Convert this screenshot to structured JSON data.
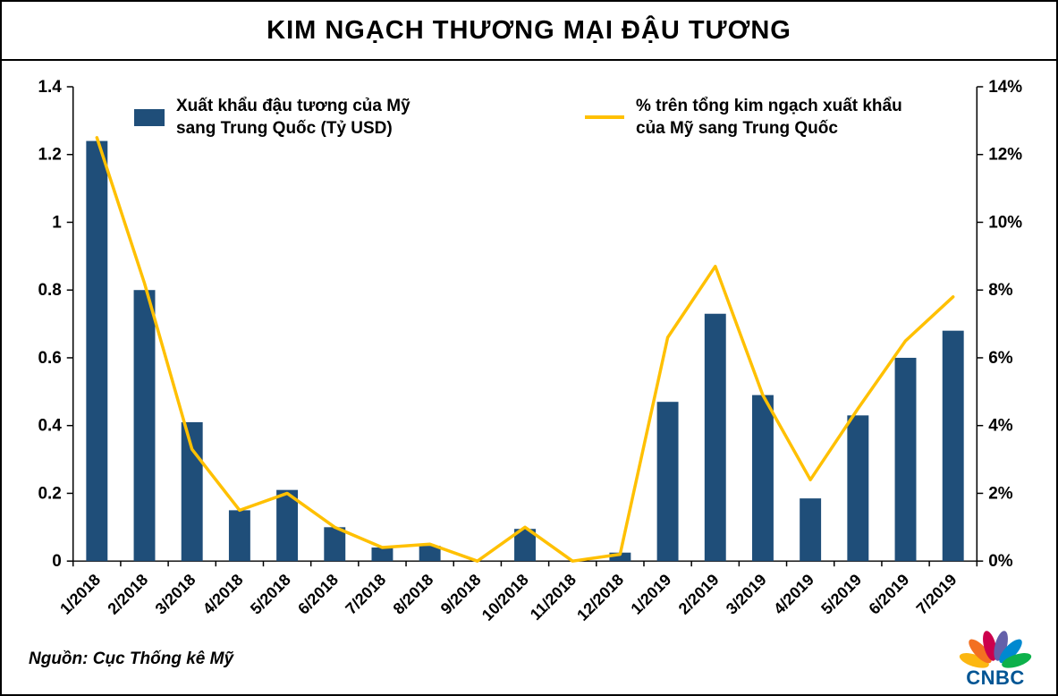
{
  "title": "KIM NGẠCH THƯƠNG MẠI ĐẬU TƯƠNG",
  "source": "Nguồn: Cục Thống kê Mỹ",
  "logo": {
    "text": "CNBC",
    "icon": "peacock-icon"
  },
  "legend": {
    "bars": {
      "line1": "Xuất khẩu đậu tương của Mỹ",
      "line2": "sang Trung Quốc (Tỷ USD)"
    },
    "line": {
      "line1": "% trên tổng kim ngạch xuất khẩu",
      "line2": "của Mỹ sang Trung Quốc"
    }
  },
  "colors": {
    "bar": "#1F4E79",
    "line": "#FFC000",
    "axis": "#000000",
    "cnbc_blue": "#005594",
    "peacock": [
      "#FCB711",
      "#F37021",
      "#CC004C",
      "#6460AA",
      "#0089D0",
      "#0DB14B"
    ]
  },
  "chart_data": {
    "type": "bar+line",
    "title": "KIM NGẠCH THƯƠNG MẠI ĐẬU TƯƠNG",
    "xlabel": "",
    "grid": false,
    "legend_position": "top-inside",
    "categories": [
      "1/2018",
      "2/2018",
      "3/2018",
      "4/2018",
      "5/2018",
      "6/2018",
      "7/2018",
      "8/2018",
      "9/2018",
      "10/2018",
      "11/2018",
      "12/2018",
      "1/2019",
      "2/2019",
      "3/2019",
      "4/2019",
      "5/2019",
      "6/2019",
      "7/2019"
    ],
    "series": [
      {
        "name": "Xuất khẩu đậu tương của Mỹ sang Trung Quốc (Tỷ USD)",
        "type": "bar",
        "axis": "left",
        "values": [
          1.24,
          0.8,
          0.41,
          0.15,
          0.21,
          0.1,
          0.04,
          0.045,
          0,
          0.095,
          0,
          0.025,
          0.47,
          0.73,
          0.49,
          0.185,
          0.43,
          0.6,
          0.68
        ]
      },
      {
        "name": "% trên tổng kim ngạch xuất khẩu của Mỹ sang Trung Quốc",
        "type": "line",
        "axis": "right",
        "values": [
          12.5,
          8.2,
          3.3,
          1.5,
          2.0,
          1.0,
          0.4,
          0.5,
          0.0,
          1.0,
          0.0,
          0.2,
          6.6,
          8.7,
          4.9,
          2.4,
          4.5,
          6.5,
          7.8
        ]
      }
    ],
    "left_axis": {
      "label": "",
      "min": 0,
      "max": 1.4,
      "ticks": [
        0,
        0.2,
        0.4,
        0.6,
        0.8,
        1,
        1.2,
        1.4
      ],
      "tick_labels": [
        "0",
        "0.2",
        "0.4",
        "0.6",
        "0.8",
        "1",
        "1.2",
        "1.4"
      ]
    },
    "right_axis": {
      "label": "",
      "min": 0,
      "max": 14,
      "ticks": [
        0,
        2,
        4,
        6,
        8,
        10,
        12,
        14
      ],
      "tick_labels": [
        "0%",
        "2%",
        "4%",
        "6%",
        "8%",
        "10%",
        "12%",
        "14%"
      ]
    }
  }
}
